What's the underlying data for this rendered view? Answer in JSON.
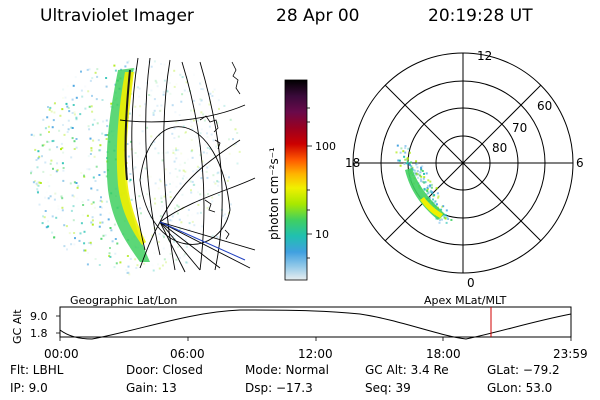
{
  "header": {
    "title": "Ultraviolet Imager",
    "date": "28 Apr 00",
    "time": "20:19:28 UT"
  },
  "image_panel": {
    "caption": "Geographic Lat/Lon"
  },
  "colorbar": {
    "unit_label": "photon cm⁻²s⁻¹",
    "ticks": [
      "100",
      "10"
    ],
    "colors": [
      "#000000",
      "#3a0a3a",
      "#6a0a4a",
      "#9a0020",
      "#cc0000",
      "#ff5a00",
      "#ffb400",
      "#f0f000",
      "#a8e800",
      "#40d060",
      "#20c0b0",
      "#40a0e0",
      "#90c8e8",
      "#d8e8ee"
    ]
  },
  "polar_plot": {
    "caption": "Apex MLat/MLT",
    "mlt_labels": {
      "top": "12",
      "right": "6",
      "bottom": "0",
      "left": "18"
    },
    "lat_labels": [
      "60",
      "70",
      "80"
    ]
  },
  "altitude_plot": {
    "ylabel": "GC Alt",
    "yticks": [
      "9.0",
      "1.8"
    ],
    "xticks": [
      "00:00",
      "06:00",
      "12:00",
      "18:00",
      "23:59"
    ],
    "marker_color": "#d00000"
  },
  "info": {
    "row1": {
      "flt": "Flt: LBHL",
      "door": "Door: Closed",
      "mode": "Mode: Normal",
      "gcalt": "GC Alt: 3.4 Re",
      "glat": "GLat: −79.2"
    },
    "row2": {
      "ip": "IP:  9.0",
      "gain": "Gain: 13",
      "dsp": "Dsp:  −17.3",
      "seq": "Seq: 39",
      "glon": "GLon:  53.0"
    }
  }
}
